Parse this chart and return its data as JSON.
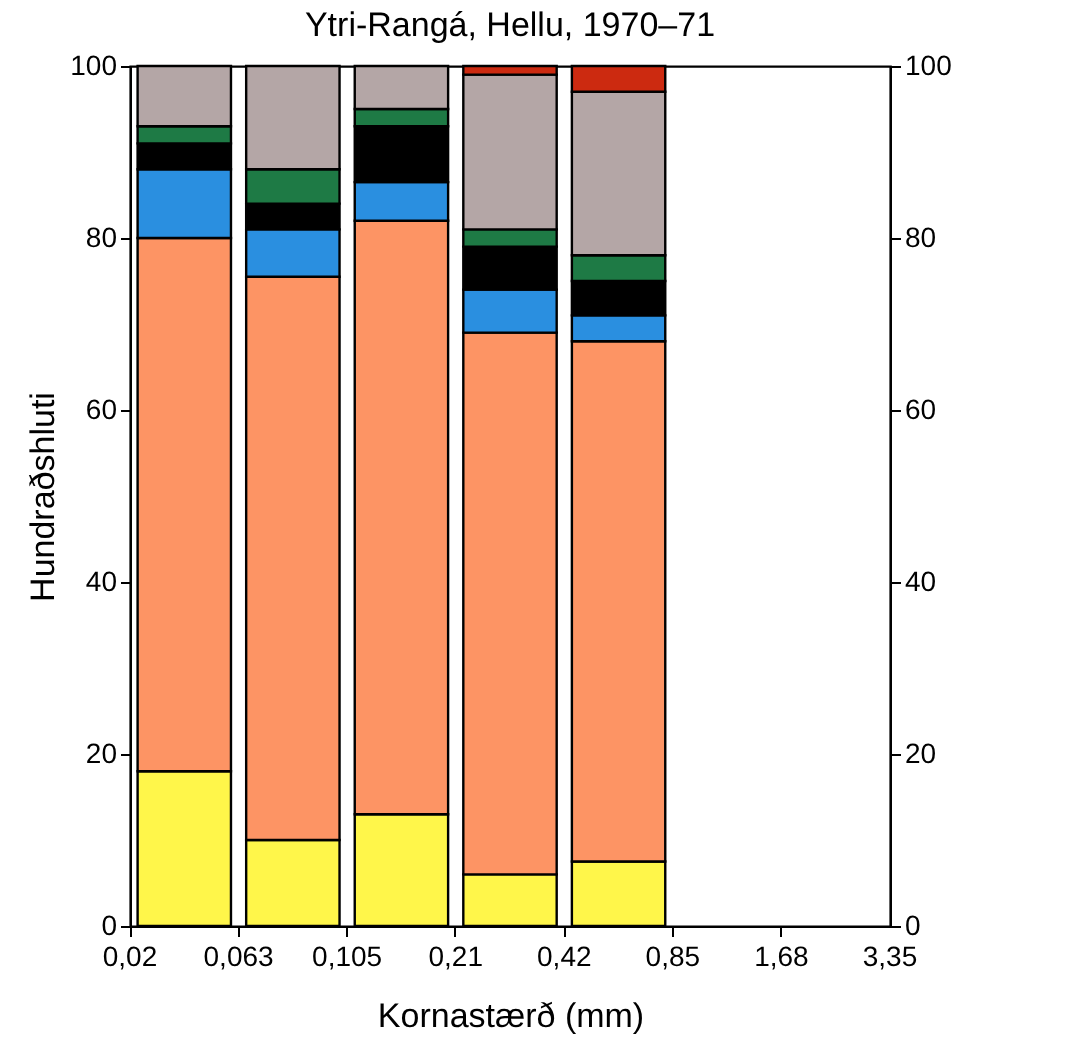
{
  "chart_data": {
    "type": "bar",
    "stacked": true,
    "title": "Ytri-Rangá, Hellu, 1970–71",
    "xlabel": "Kornastærð (mm)",
    "ylabel": "Hundraðshluti",
    "categories": [
      null,
      null,
      null,
      null,
      null,
      null,
      null
    ],
    "series": [
      {
        "color": "#fff64a",
        "values": [
          18,
          10,
          13,
          6,
          7.5,
          null,
          null
        ]
      },
      {
        "color": "#fd9464",
        "values": [
          62,
          65.5,
          69,
          63,
          60.5,
          null,
          null
        ]
      },
      {
        "color": "#2a8fe0",
        "values": [
          8,
          5.5,
          4.5,
          5,
          3,
          null,
          null
        ]
      },
      {
        "color": "#000000",
        "values": [
          3,
          3,
          6.5,
          5,
          4,
          null,
          null
        ]
      },
      {
        "color": "#1e7a45",
        "values": [
          2,
          4,
          2,
          2,
          3,
          null,
          null
        ]
      },
      {
        "color": "#b4a6a6",
        "values": [
          7,
          12,
          5,
          18,
          19,
          null,
          null
        ]
      },
      {
        "color": "#cc2a10",
        "values": [
          null,
          null,
          null,
          1,
          3,
          null,
          null
        ]
      }
    ],
    "annotations": [
      "0,02",
      "0,063",
      "0,105",
      "0,21",
      "0,42",
      "0,85",
      "1,68",
      "3,35"
    ],
    "ylim": [
      0,
      100
    ],
    "yticks": [
      0,
      20,
      40,
      60,
      80,
      100
    ],
    "y2lim": [
      0,
      100
    ],
    "y2ticks": [
      0,
      20,
      40,
      60,
      80,
      100
    ],
    "grid": false,
    "legend": false
  }
}
